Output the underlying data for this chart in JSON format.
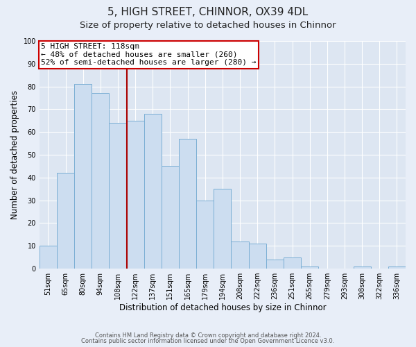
{
  "title": "5, HIGH STREET, CHINNOR, OX39 4DL",
  "subtitle": "Size of property relative to detached houses in Chinnor",
  "xlabel": "Distribution of detached houses by size in Chinnor",
  "ylabel": "Number of detached properties",
  "categories": [
    "51sqm",
    "65sqm",
    "80sqm",
    "94sqm",
    "108sqm",
    "122sqm",
    "137sqm",
    "151sqm",
    "165sqm",
    "179sqm",
    "194sqm",
    "208sqm",
    "222sqm",
    "236sqm",
    "251sqm",
    "265sqm",
    "279sqm",
    "293sqm",
    "308sqm",
    "322sqm",
    "336sqm"
  ],
  "values": [
    10,
    42,
    81,
    77,
    64,
    65,
    68,
    45,
    57,
    30,
    35,
    12,
    11,
    4,
    5,
    1,
    0,
    0,
    1,
    0,
    1
  ],
  "bar_color": "#ccddf0",
  "bar_edgecolor": "#7aaed4",
  "vline_color": "#aa0000",
  "annotation_text": "5 HIGH STREET: 118sqm\n← 48% of detached houses are smaller (260)\n52% of semi-detached houses are larger (280) →",
  "annotation_box_color": "#cc0000",
  "ylim": [
    0,
    100
  ],
  "yticks": [
    0,
    10,
    20,
    30,
    40,
    50,
    60,
    70,
    80,
    90,
    100
  ],
  "footer1": "Contains HM Land Registry data © Crown copyright and database right 2024.",
  "footer2": "Contains public sector information licensed under the Open Government Licence v3.0.",
  "fig_facecolor": "#e8eef8",
  "plot_facecolor": "#dde6f2",
  "grid_color": "#ffffff",
  "title_fontsize": 11,
  "subtitle_fontsize": 9.5,
  "tick_fontsize": 7,
  "ylabel_fontsize": 8.5,
  "xlabel_fontsize": 8.5,
  "annotation_fontsize": 8
}
